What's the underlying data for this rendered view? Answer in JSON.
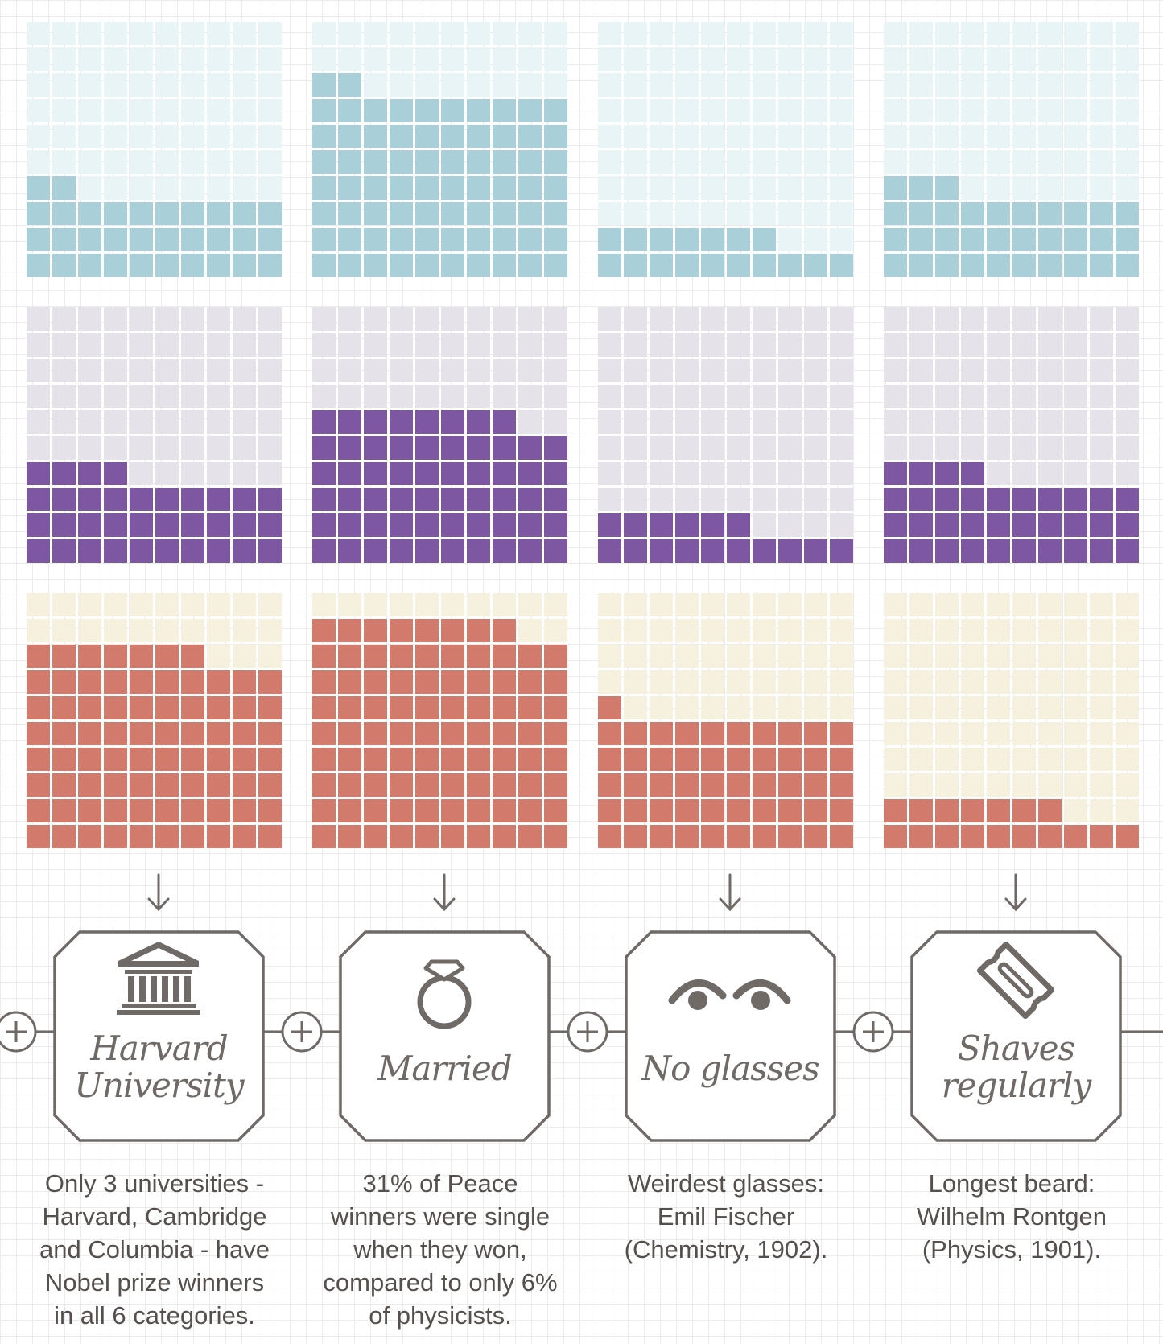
{
  "chart_data": {
    "type": "waffle",
    "grid": {
      "rows": 10,
      "cols": 10
    },
    "columns": [
      {
        "label": "Harvard\nUniversity",
        "icon": "university-building-icon",
        "caption": "Only 3 universities -\nHarvard, Cambridge\nand Columbia - have\nNobel prize winners\nin all 6 categories."
      },
      {
        "label": "Married",
        "icon": "diamond-ring-icon",
        "caption": "31% of Peace\nwinners were single\nwhen they won,\ncompared to only 6%\nof physicists."
      },
      {
        "label": "No glasses",
        "icon": "eyes-icon",
        "caption": "Weirdest glasses:\nEmil Fischer\n(Chemistry, 1902)."
      },
      {
        "label": "Shaves\nregularly",
        "icon": "razor-blade-icon",
        "caption": "Longest beard:\nWilhelm Rontgen\n(Physics, 1901)."
      }
    ],
    "rows": [
      {
        "color": "#a9d0d8",
        "background": "#e9f4f7",
        "values": [
          32,
          72,
          17,
          33
        ]
      },
      {
        "color": "#7e57a3",
        "background": "#e6e2ea",
        "values": [
          34,
          58,
          16,
          34
        ]
      },
      {
        "color": "#d27a6b",
        "background": "#f6f0df",
        "values": [
          77,
          88,
          51,
          17
        ]
      }
    ]
  },
  "colors": {
    "frame": "#6f6a66",
    "text": "#55504c"
  }
}
